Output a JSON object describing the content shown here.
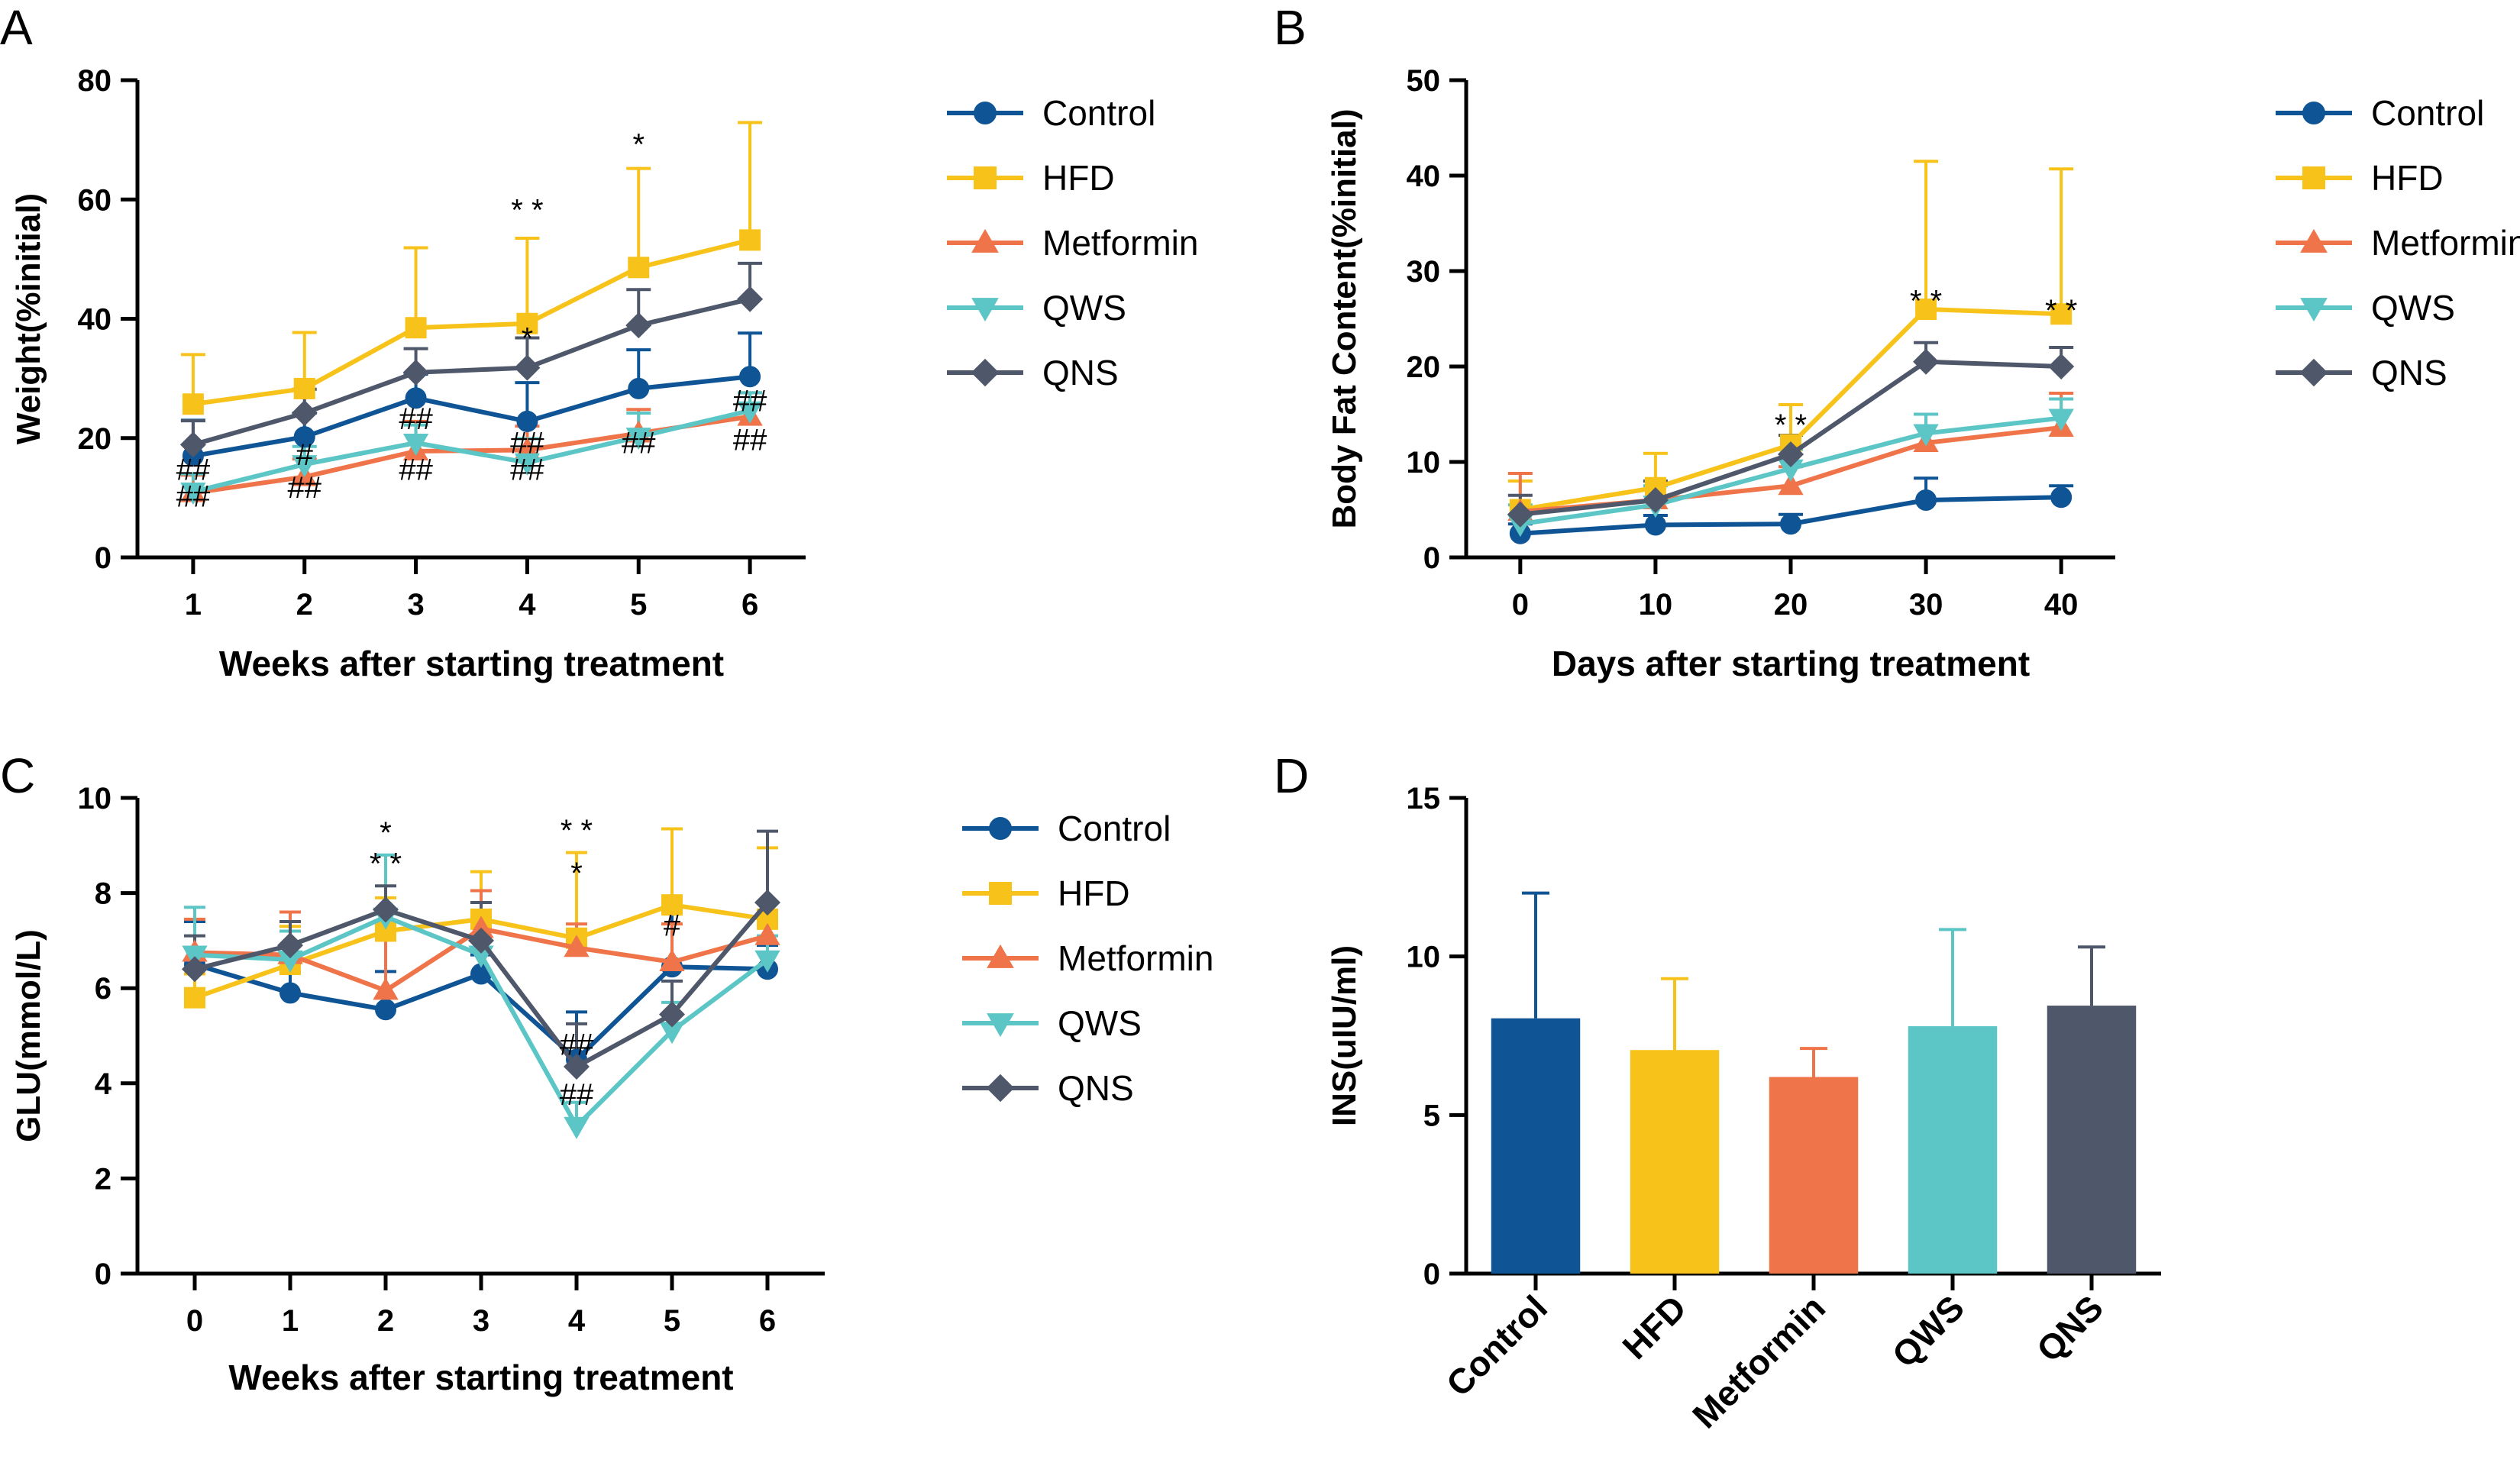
{
  "chart_data": [
    {
      "panel": "A",
      "type": "line",
      "ylabel": "Weight(%initial)",
      "xlabel": "Weeks after starting treatment",
      "x": [
        1,
        2,
        3,
        4,
        5,
        6
      ],
      "xlim": [
        0.5,
        6.5
      ],
      "ylim": [
        0,
        80
      ],
      "xticks": [
        1,
        2,
        3,
        4,
        5,
        6
      ],
      "yticks": [
        0,
        20,
        40,
        60,
        80
      ],
      "legend_position": "right",
      "series": [
        {
          "name": "Control",
          "color": "#0f5596",
          "marker": "circle",
          "values": [
            17,
            20.2,
            26.7,
            22.8,
            28.3,
            30.3
          ],
          "errors": [
            6,
            4,
            4,
            6.5,
            6.5,
            7.3
          ]
        },
        {
          "name": "HFD",
          "color": "#f7c31a",
          "marker": "square",
          "values": [
            25.7,
            28.3,
            38.5,
            39.2,
            48.6,
            53.2
          ],
          "errors": [
            8.3,
            9.4,
            13.4,
            14.3,
            16.6,
            19.7
          ]
        },
        {
          "name": "Metformin",
          "color": "#ef744a",
          "marker": "triangle-up",
          "values": [
            10.8,
            13.5,
            17.8,
            18,
            20.8,
            23.6
          ],
          "errors": [
            3,
            3,
            5,
            4,
            4,
            4
          ]
        },
        {
          "name": "QWS",
          "color": "#5cc5c5",
          "marker": "triangle-down",
          "values": [
            11,
            15.6,
            19.2,
            15.9,
            20.2,
            24.6
          ],
          "errors": [
            3,
            3,
            3,
            4,
            4,
            3
          ]
        },
        {
          "name": "QNS",
          "color": "#4f576a",
          "marker": "diamond",
          "values": [
            18.9,
            24.2,
            31,
            31.8,
            38.9,
            43.3
          ],
          "errors": [
            4,
            4,
            4,
            5,
            6,
            6
          ]
        }
      ],
      "annotations": [
        {
          "x": 4,
          "y": 56.5,
          "text": "* *"
        },
        {
          "x": 5,
          "y": 67.5,
          "text": "*"
        },
        {
          "x": 4,
          "y": 35,
          "text": "*"
        },
        {
          "x": 1,
          "y": 13,
          "text": "##"
        },
        {
          "x": 1,
          "y": 8.5,
          "text": "##"
        },
        {
          "x": 2,
          "y": 15.5,
          "text": "#"
        },
        {
          "x": 2,
          "y": 10,
          "text": "##"
        },
        {
          "x": 3,
          "y": 21.5,
          "text": "##"
        },
        {
          "x": 3,
          "y": 13,
          "text": "##"
        },
        {
          "x": 4,
          "y": 17.5,
          "text": "##"
        },
        {
          "x": 4,
          "y": 13,
          "text": "##"
        },
        {
          "x": 5,
          "y": 17.5,
          "text": "##"
        },
        {
          "x": 6,
          "y": 24.5,
          "text": "##"
        },
        {
          "x": 6,
          "y": 18,
          "text": "##"
        }
      ]
    },
    {
      "panel": "B",
      "type": "line",
      "ylabel": "Body Fat Content(%initial)",
      "xlabel": "Days after starting treatment",
      "x": [
        0,
        10,
        20,
        30,
        40
      ],
      "xlim": [
        -4,
        44
      ],
      "ylim": [
        0,
        50
      ],
      "xticks": [
        0,
        10,
        20,
        30,
        40
      ],
      "yticks": [
        0,
        10,
        20,
        30,
        40,
        50
      ],
      "legend_position": "right",
      "series": [
        {
          "name": "Control",
          "color": "#0f5596",
          "marker": "circle",
          "values": [
            2.5,
            3.4,
            3.5,
            6,
            6.3
          ],
          "errors": [
            1,
            1,
            1,
            2.3,
            1.2
          ]
        },
        {
          "name": "HFD",
          "color": "#f7c31a",
          "marker": "square",
          "values": [
            5,
            7.3,
            11.8,
            26,
            25.5
          ],
          "errors": [
            3,
            3.6,
            4.2,
            15.5,
            15.2
          ]
        },
        {
          "name": "Metformin",
          "color": "#ef744a",
          "marker": "triangle-up",
          "values": [
            4.8,
            6,
            7.5,
            12,
            13.6
          ],
          "errors": [
            4,
            2,
            2,
            3,
            3.6
          ]
        },
        {
          "name": "QWS",
          "color": "#5cc5c5",
          "marker": "triangle-down",
          "values": [
            3.5,
            5.5,
            9.3,
            13,
            14.6
          ],
          "errors": [
            2,
            2,
            2,
            2,
            2
          ]
        },
        {
          "name": "QNS",
          "color": "#4f576a",
          "marker": "diamond",
          "values": [
            4.5,
            6,
            10.8,
            20.5,
            20
          ],
          "errors": [
            2,
            2,
            2,
            2,
            2
          ]
        }
      ],
      "annotations": [
        {
          "x": 20,
          "y": 12.8,
          "text": "* *"
        },
        {
          "x": 30,
          "y": 25.8,
          "text": "* *"
        },
        {
          "x": 40,
          "y": 24.8,
          "text": "* *"
        }
      ]
    },
    {
      "panel": "C",
      "type": "line",
      "ylabel": "GLU(mmol/L)",
      "xlabel": "Weeks after starting treatment",
      "x": [
        0,
        1,
        2,
        3,
        4,
        5,
        6
      ],
      "xlim": [
        -0.6,
        6.6
      ],
      "ylim": [
        0,
        10
      ],
      "xticks": [
        0,
        1,
        2,
        3,
        4,
        5,
        6
      ],
      "yticks": [
        0,
        2,
        4,
        6,
        8,
        10
      ],
      "legend_position": "right",
      "series": [
        {
          "name": "Control",
          "color": "#0f5596",
          "marker": "circle",
          "values": [
            6.5,
            5.9,
            5.55,
            6.3,
            4.5,
            6.45,
            6.4
          ],
          "errors": [
            0.9,
            0.8,
            0.8,
            0.4,
            1,
            1.3,
            0.5
          ]
        },
        {
          "name": "HFD",
          "color": "#f7c31a",
          "marker": "square",
          "values": [
            5.8,
            6.5,
            7.2,
            7.45,
            7.05,
            7.75,
            7.45
          ],
          "errors": [
            0.5,
            0.8,
            0.7,
            1,
            1.8,
            1.6,
            1.5
          ]
        },
        {
          "name": "Metformin",
          "color": "#ef744a",
          "marker": "triangle-up",
          "values": [
            6.75,
            6.7,
            5.95,
            7.25,
            6.85,
            6.55,
            7.1
          ],
          "errors": [
            0.7,
            0.9,
            1.1,
            0.8,
            0.5,
            0.8,
            0.7
          ]
        },
        {
          "name": "QWS",
          "color": "#5cc5c5",
          "marker": "triangle-down",
          "values": [
            6.7,
            6.6,
            7.5,
            6.7,
            3.1,
            5.1,
            6.6
          ],
          "errors": [
            1,
            0.6,
            1.3,
            0.6,
            0.5,
            0.6,
            0.5
          ]
        },
        {
          "name": "QNS",
          "color": "#4f576a",
          "marker": "diamond",
          "values": [
            6.4,
            6.9,
            7.65,
            7,
            4.35,
            5.45,
            7.8
          ],
          "errors": [
            0.7,
            0.5,
            0.5,
            0.8,
            0.9,
            0.7,
            1.5
          ]
        }
      ],
      "annotations": [
        {
          "x": 2,
          "y": 9.05,
          "text": "*"
        },
        {
          "x": 2,
          "y": 8.4,
          "text": "* *"
        },
        {
          "x": 4,
          "y": 9.1,
          "text": "* *"
        },
        {
          "x": 4,
          "y": 8.2,
          "text": "*"
        },
        {
          "x": 5,
          "y": 7.1,
          "text": "#"
        },
        {
          "x": 4,
          "y": 4.6,
          "text": "##"
        },
        {
          "x": 4,
          "y": 3.55,
          "text": "##"
        }
      ]
    },
    {
      "panel": "D",
      "type": "bar",
      "ylabel": "INS(uIU/ml)",
      "xlabel": "",
      "categories": [
        "Control",
        "HFD",
        "Metformin",
        "QWS",
        "QNS"
      ],
      "values": [
        8.05,
        7.05,
        6.2,
        7.8,
        8.45
      ],
      "errors": [
        3.95,
        2.25,
        0.9,
        3.05,
        1.85
      ],
      "colors": [
        "#0f5596",
        "#f7c31a",
        "#ef744a",
        "#5cc5c5",
        "#4f576a"
      ],
      "ylim": [
        0,
        15
      ],
      "yticks": [
        0,
        5,
        10,
        15
      ]
    }
  ]
}
